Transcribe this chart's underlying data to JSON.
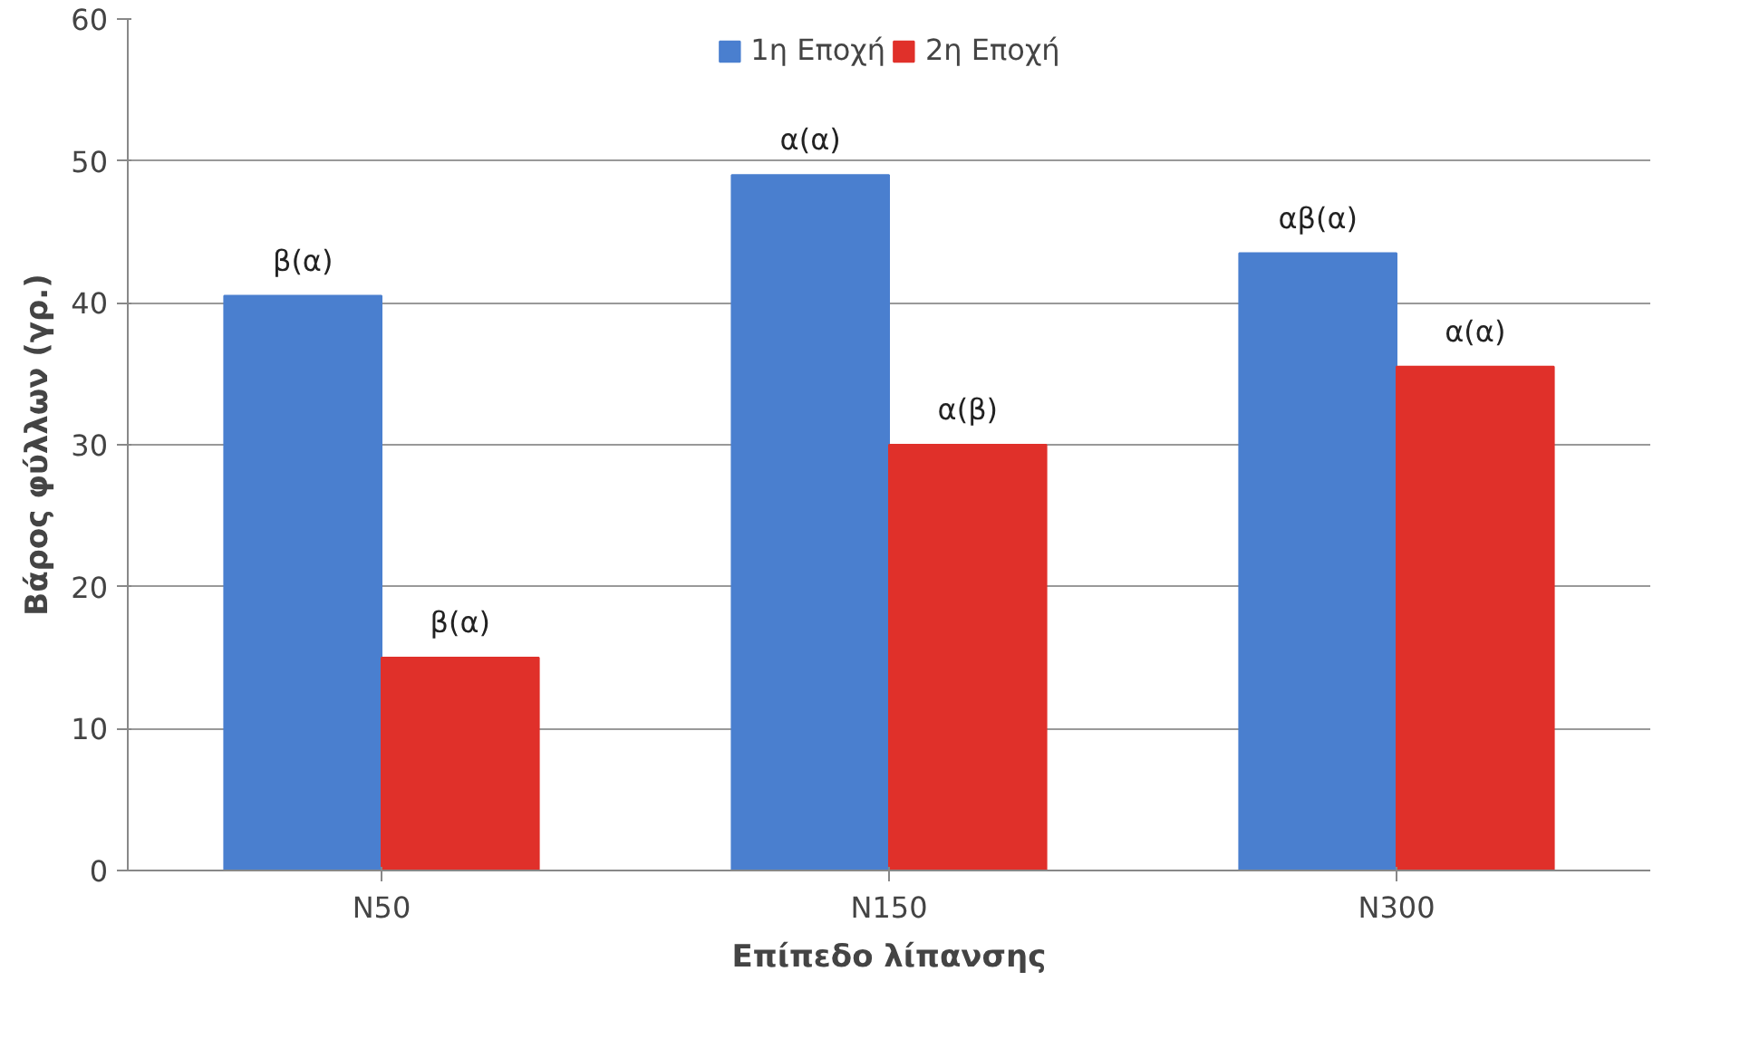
{
  "chart_data": {
    "type": "bar",
    "categories": [
      "N50",
      "N150",
      "N300"
    ],
    "xlabel": "Επίπεδο λίπανσης",
    "ylabel": "Βάρος φύλλων (γρ.)",
    "series": [
      {
        "name": "1η Εποχή",
        "color": "#4a7fcf",
        "values": [
          40.5,
          49,
          43.5
        ],
        "value_labels": [
          "β(α)",
          "α(α)",
          "αβ(α)"
        ]
      },
      {
        "name": "2η Εποχή",
        "color": "#e0302a",
        "values": [
          15,
          30,
          35.5
        ],
        "value_labels": [
          "β(α)",
          "α(β)",
          "α(α)"
        ]
      }
    ],
    "ylim": [
      0,
      60
    ],
    "yticks": [
      0,
      10,
      20,
      30,
      40,
      50,
      60
    ],
    "grid": "y",
    "legend": "top"
  }
}
